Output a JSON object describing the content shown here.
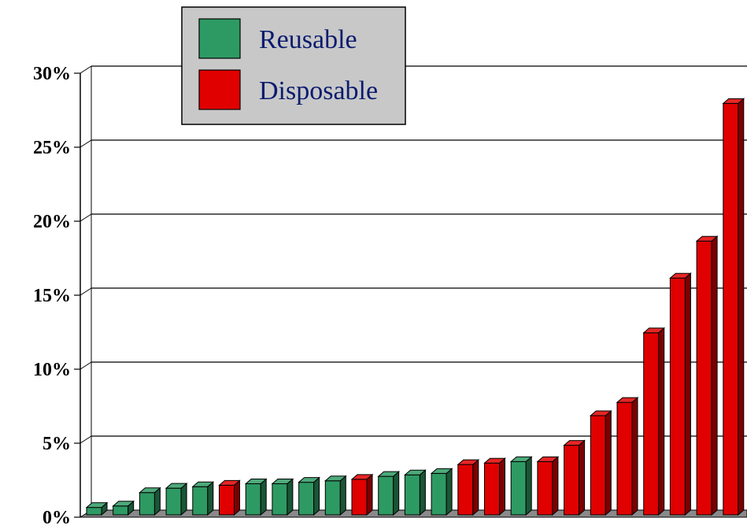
{
  "chart_data": {
    "type": "bar",
    "title": "",
    "xlabel": "",
    "ylabel": "",
    "ylim": [
      0,
      30
    ],
    "y_ticks": [
      0,
      5,
      10,
      15,
      20,
      25,
      30
    ],
    "y_tick_labels": [
      "0%",
      "5%",
      "10%",
      "15%",
      "20%",
      "25%",
      "30%"
    ],
    "grid": true,
    "legend_position": "top-left",
    "series_colors": {
      "Reusable": "#2e9a63",
      "Disposable": "#e00000"
    },
    "legend": [
      {
        "name": "Reusable",
        "color": "#2e9a63"
      },
      {
        "name": "Disposable",
        "color": "#e00000"
      }
    ],
    "bars": [
      {
        "series": "Reusable",
        "value": 0.5
      },
      {
        "series": "Reusable",
        "value": 0.6
      },
      {
        "series": "Reusable",
        "value": 1.5
      },
      {
        "series": "Reusable",
        "value": 1.8
      },
      {
        "series": "Reusable",
        "value": 1.9
      },
      {
        "series": "Disposable",
        "value": 2.0
      },
      {
        "series": "Reusable",
        "value": 2.1
      },
      {
        "series": "Reusable",
        "value": 2.1
      },
      {
        "series": "Reusable",
        "value": 2.2
      },
      {
        "series": "Reusable",
        "value": 2.3
      },
      {
        "series": "Disposable",
        "value": 2.4
      },
      {
        "series": "Reusable",
        "value": 2.6
      },
      {
        "series": "Reusable",
        "value": 2.7
      },
      {
        "series": "Reusable",
        "value": 2.8
      },
      {
        "series": "Disposable",
        "value": 3.4
      },
      {
        "series": "Disposable",
        "value": 3.5
      },
      {
        "series": "Reusable",
        "value": 3.6
      },
      {
        "series": "Disposable",
        "value": 3.6
      },
      {
        "series": "Disposable",
        "value": 4.7
      },
      {
        "series": "Disposable",
        "value": 6.7
      },
      {
        "series": "Disposable",
        "value": 7.6
      },
      {
        "series": "Disposable",
        "value": 12.3
      },
      {
        "series": "Disposable",
        "value": 16.0
      },
      {
        "series": "Disposable",
        "value": 18.5
      },
      {
        "series": "Disposable",
        "value": 27.8
      }
    ]
  }
}
